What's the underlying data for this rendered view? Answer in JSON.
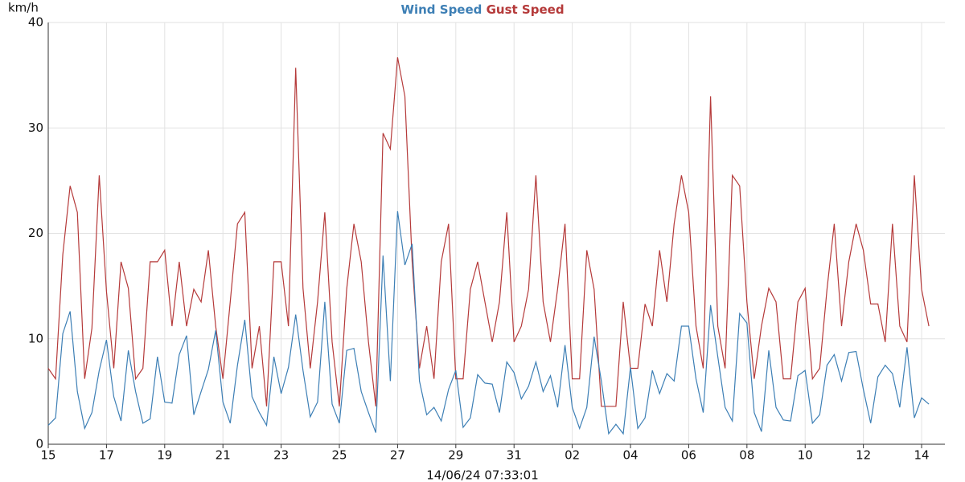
{
  "chart_data": {
    "type": "line",
    "title": "14/06/24 07:33:01",
    "ylabel": "km/h",
    "xlim": [
      0,
      30.8
    ],
    "xticks": [
      {
        "value": 0,
        "label": "15"
      },
      {
        "value": 2,
        "label": "17"
      },
      {
        "value": 4,
        "label": "19"
      },
      {
        "value": 6,
        "label": "21"
      },
      {
        "value": 8,
        "label": "23"
      },
      {
        "value": 10,
        "label": "25"
      },
      {
        "value": 12,
        "label": "27"
      },
      {
        "value": 14,
        "label": "29"
      },
      {
        "value": 16,
        "label": "31"
      },
      {
        "value": 18,
        "label": "02"
      },
      {
        "value": 20,
        "label": "04"
      },
      {
        "value": 22,
        "label": "06"
      },
      {
        "value": 24,
        "label": "08"
      },
      {
        "value": 26,
        "label": "10"
      },
      {
        "value": 28,
        "label": "12"
      },
      {
        "value": 30,
        "label": "14"
      }
    ],
    "ylim": [
      0,
      40
    ],
    "yticks": [
      0,
      10,
      20,
      30,
      40
    ],
    "grid": true,
    "x": [
      0,
      0.25,
      0.5,
      0.75,
      1,
      1.25,
      1.5,
      1.75,
      2,
      2.25,
      2.5,
      2.75,
      3,
      3.25,
      3.5,
      3.75,
      4,
      4.25,
      4.5,
      4.75,
      5,
      5.25,
      5.5,
      5.75,
      6,
      6.25,
      6.5,
      6.75,
      7,
      7.25,
      7.5,
      7.75,
      8,
      8.25,
      8.5,
      8.75,
      9,
      9.25,
      9.5,
      9.75,
      10,
      10.25,
      10.5,
      10.75,
      11,
      11.25,
      11.5,
      11.75,
      12,
      12.25,
      12.5,
      12.75,
      13,
      13.25,
      13.5,
      13.75,
      14,
      14.25,
      14.5,
      14.75,
      15,
      15.25,
      15.5,
      15.75,
      16,
      16.25,
      16.5,
      16.75,
      17,
      17.25,
      17.5,
      17.75,
      18,
      18.25,
      18.5,
      18.75,
      19,
      19.25,
      19.5,
      19.75,
      20,
      20.25,
      20.5,
      20.75,
      21,
      21.25,
      21.5,
      21.75,
      22,
      22.25,
      22.5,
      22.75,
      23,
      23.25,
      23.5,
      23.75,
      24,
      24.25,
      24.5,
      24.75,
      25,
      25.25,
      25.5,
      25.75,
      26,
      26.25,
      26.5,
      26.75,
      27,
      27.25,
      27.5,
      27.75,
      28,
      28.25,
      28.5,
      28.75,
      29,
      29.25,
      29.5,
      29.75,
      30,
      30.25
    ],
    "series": [
      {
        "name": "Wind Speed",
        "color": "#3d7fb5",
        "values": [
          1.8,
          2.5,
          10.5,
          12.6,
          5,
          1.5,
          3,
          7,
          9.9,
          4.5,
          2.2,
          8.9,
          5,
          2,
          2.4,
          8.3,
          4,
          3.9,
          8.5,
          10.3,
          2.8,
          5,
          7.1,
          10.8,
          4,
          2,
          7.5,
          11.8,
          4.5,
          3,
          1.8,
          8.3,
          4.8,
          7.3,
          12.3,
          7,
          2.6,
          4,
          13.5,
          3.8,
          2,
          8.9,
          9.1,
          5,
          3,
          1.1,
          17.9,
          6,
          22.1,
          17,
          19,
          6,
          2.8,
          3.5,
          2.2,
          5.2,
          7,
          1.6,
          2.5,
          6.6,
          5.8,
          5.7,
          3,
          7.8,
          6.8,
          4.3,
          5.5,
          7.8,
          5,
          6.5,
          3.5,
          9.4,
          3.5,
          1.5,
          3.5,
          10.2,
          6,
          1,
          1.9,
          1,
          7.3,
          1.5,
          2.5,
          7,
          4.8,
          6.7,
          6,
          11.2,
          11.2,
          6.2,
          3,
          13.2,
          8.3,
          3.5,
          2.2,
          12.4,
          11.5,
          3,
          1.2,
          8.9,
          3.5,
          2.3,
          2.2,
          6.5,
          7,
          2,
          2.8,
          7.5,
          8.5,
          6,
          8.7,
          8.8,
          5.2,
          2,
          6.4,
          7.5,
          6.7,
          3.5,
          9.2,
          2.5,
          4.4,
          3.8
        ]
      },
      {
        "name": "Gust Speed",
        "color": "#b53a3a",
        "values": [
          7.2,
          6.2,
          18,
          24.5,
          22,
          6.2,
          11,
          25.5,
          14.5,
          7.2,
          17.3,
          14.8,
          6.2,
          7.2,
          17.3,
          17.3,
          18.4,
          11.2,
          17.3,
          11.2,
          14.7,
          13.5,
          18.4,
          11.2,
          6.2,
          13.5,
          20.9,
          22,
          7.2,
          11.2,
          3.6,
          17.3,
          17.3,
          11.2,
          35.7,
          14.8,
          7.2,
          13.5,
          22,
          9.7,
          3.6,
          14.7,
          20.9,
          17.3,
          9.7,
          3.6,
          29.5,
          28,
          36.7,
          33,
          17.3,
          7.2,
          11.2,
          6.2,
          17.3,
          20.9,
          6.2,
          6.2,
          14.7,
          17.3,
          13.5,
          9.7,
          13.5,
          22,
          9.7,
          11.2,
          14.7,
          25.5,
          13.5,
          9.7,
          14.8,
          20.9,
          6.2,
          6.2,
          18.4,
          14.7,
          3.6,
          3.6,
          3.6,
          13.5,
          7.2,
          7.2,
          13.3,
          11.2,
          18.4,
          13.5,
          20.9,
          25.5,
          22,
          11.2,
          7.2,
          33,
          11.2,
          7.2,
          25.5,
          24.5,
          13.5,
          6.2,
          11.2,
          14.8,
          13.5,
          6.2,
          6.2,
          13.5,
          14.8,
          6.2,
          7.2,
          14.7,
          20.9,
          11.2,
          17.3,
          20.9,
          18.4,
          13.3,
          13.3,
          9.7,
          20.9,
          11.2,
          9.7,
          25.5,
          14.7,
          11.2
        ]
      }
    ]
  }
}
